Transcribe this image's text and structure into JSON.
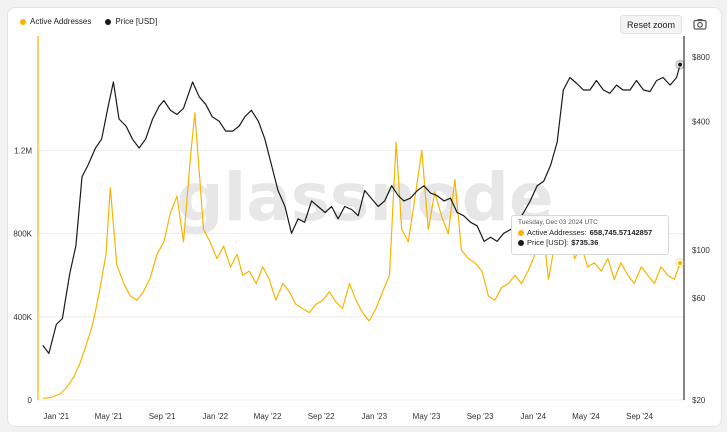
{
  "legend": {
    "active_label": "Active Addresses",
    "price_label": "Price [USD]"
  },
  "toolbar": {
    "reset_zoom_label": "Reset zoom",
    "camera_icon": "camera-icon"
  },
  "watermark": "glassnode",
  "colors": {
    "active": "#f7b500",
    "price": "#1a1a1a",
    "grid": "#ebebeb",
    "axis_text": "#333333"
  },
  "tooltip": {
    "date": "Tuesday, Dec 03 2024 UTC",
    "active_label": "Active Addresses:",
    "active_value": "658,745.57142857",
    "price_label": "Price [USD]:",
    "price_value": "$735.36"
  },
  "chart_data": {
    "type": "line",
    "x_ticks": [
      "Jan '21",
      "May '21",
      "Sep '21",
      "Jan '22",
      "May '22",
      "Sep '22",
      "Jan '23",
      "May '23",
      "Sep '23",
      "Jan '24",
      "May '24",
      "Sep '24"
    ],
    "left_axis": {
      "ticks": [
        "0",
        "400K",
        "800K",
        "1.2M"
      ],
      "ylim": [
        0,
        1750000
      ]
    },
    "right_axis": {
      "scale": "log",
      "ticks": [
        "$20",
        "$60",
        "$100",
        "$400",
        "$800"
      ],
      "ylim": [
        20,
        1000
      ]
    },
    "grid": true,
    "legend_position": "top-left",
    "series": [
      {
        "name": "Active Addresses",
        "axis": "left",
        "x": [
          "2020-12-01",
          "2020-12-20",
          "2021-01-10",
          "2021-01-25",
          "2021-02-10",
          "2021-02-25",
          "2021-03-10",
          "2021-03-25",
          "2021-04-10",
          "2021-04-25",
          "2021-05-05",
          "2021-05-20",
          "2021-06-05",
          "2021-06-20",
          "2021-07-05",
          "2021-07-20",
          "2021-08-05",
          "2021-08-20",
          "2021-09-05",
          "2021-09-20",
          "2021-10-05",
          "2021-10-20",
          "2021-11-05",
          "2021-11-15",
          "2021-11-25",
          "2021-12-05",
          "2021-12-20",
          "2022-01-05",
          "2022-01-20",
          "2022-02-05",
          "2022-02-20",
          "2022-03-05",
          "2022-03-20",
          "2022-04-05",
          "2022-04-20",
          "2022-05-05",
          "2022-05-20",
          "2022-06-05",
          "2022-06-20",
          "2022-07-05",
          "2022-07-20",
          "2022-08-05",
          "2022-08-20",
          "2022-09-05",
          "2022-09-20",
          "2022-10-05",
          "2022-10-20",
          "2022-11-05",
          "2022-11-20",
          "2022-12-05",
          "2022-12-20",
          "2023-01-05",
          "2023-01-20",
          "2023-02-05",
          "2023-02-20",
          "2023-03-05",
          "2023-03-20",
          "2023-04-05",
          "2023-04-20",
          "2023-05-05",
          "2023-05-20",
          "2023-06-05",
          "2023-06-20",
          "2023-07-05",
          "2023-07-20",
          "2023-08-05",
          "2023-08-20",
          "2023-09-05",
          "2023-09-20",
          "2023-10-05",
          "2023-10-20",
          "2023-11-05",
          "2023-11-20",
          "2023-12-05",
          "2023-12-20",
          "2024-01-05",
          "2024-01-20",
          "2024-02-05",
          "2024-02-20",
          "2024-03-05",
          "2024-03-20",
          "2024-04-05",
          "2024-04-20",
          "2024-05-05",
          "2024-05-20",
          "2024-06-05",
          "2024-06-20",
          "2024-07-05",
          "2024-07-20",
          "2024-08-05",
          "2024-08-20",
          "2024-09-05",
          "2024-09-20",
          "2024-10-05",
          "2024-10-20",
          "2024-11-05",
          "2024-11-20",
          "2024-12-03"
        ],
        "values": [
          8000,
          12000,
          30000,
          60000,
          110000,
          180000,
          260000,
          360000,
          520000,
          700000,
          1020000,
          650000,
          560000,
          500000,
          480000,
          520000,
          590000,
          700000,
          760000,
          900000,
          980000,
          760000,
          1170000,
          1380000,
          1100000,
          820000,
          760000,
          680000,
          740000,
          640000,
          700000,
          600000,
          620000,
          560000,
          640000,
          580000,
          480000,
          560000,
          520000,
          460000,
          440000,
          420000,
          460000,
          480000,
          520000,
          470000,
          440000,
          560000,
          480000,
          420000,
          380000,
          440000,
          520000,
          600000,
          1240000,
          820000,
          760000,
          980000,
          1200000,
          820000,
          1000000,
          880000,
          800000,
          1060000,
          720000,
          680000,
          660000,
          620000,
          500000,
          480000,
          540000,
          560000,
          600000,
          560000,
          620000,
          700000,
          880000,
          580000,
          760000,
          760000,
          840000,
          680000,
          740000,
          640000,
          660000,
          620000,
          680000,
          580000,
          660000,
          600000,
          560000,
          640000,
          600000,
          560000,
          640000,
          600000,
          580000,
          658746
        ]
      },
      {
        "name": "Price [USD]",
        "axis": "right",
        "x": [
          "2020-12-01",
          "2020-12-15",
          "2021-01-01",
          "2021-01-15",
          "2021-02-01",
          "2021-02-15",
          "2021-03-01",
          "2021-03-15",
          "2021-04-01",
          "2021-04-15",
          "2021-05-01",
          "2021-05-12",
          "2021-05-25",
          "2021-06-10",
          "2021-06-25",
          "2021-07-10",
          "2021-07-25",
          "2021-08-10",
          "2021-08-25",
          "2021-09-05",
          "2021-09-20",
          "2021-10-05",
          "2021-10-20",
          "2021-11-10",
          "2021-11-25",
          "2021-12-10",
          "2021-12-25",
          "2022-01-10",
          "2022-01-25",
          "2022-02-10",
          "2022-02-25",
          "2022-03-10",
          "2022-03-25",
          "2022-04-10",
          "2022-04-25",
          "2022-05-10",
          "2022-05-25",
          "2022-06-10",
          "2022-06-25",
          "2022-07-10",
          "2022-07-25",
          "2022-08-10",
          "2022-08-25",
          "2022-09-10",
          "2022-09-25",
          "2022-10-10",
          "2022-10-25",
          "2022-11-10",
          "2022-11-25",
          "2022-12-10",
          "2022-12-25",
          "2023-01-10",
          "2023-01-25",
          "2023-02-10",
          "2023-02-25",
          "2023-03-10",
          "2023-03-25",
          "2023-04-10",
          "2023-04-25",
          "2023-05-10",
          "2023-05-25",
          "2023-06-10",
          "2023-06-25",
          "2023-07-10",
          "2023-07-25",
          "2023-08-10",
          "2023-08-25",
          "2023-09-10",
          "2023-09-25",
          "2023-10-10",
          "2023-10-25",
          "2023-11-10",
          "2023-11-25",
          "2023-12-10",
          "2023-12-25",
          "2024-01-10",
          "2024-01-25",
          "2024-02-10",
          "2024-02-25",
          "2024-03-10",
          "2024-03-25",
          "2024-04-10",
          "2024-04-25",
          "2024-05-10",
          "2024-05-25",
          "2024-06-10",
          "2024-06-25",
          "2024-07-10",
          "2024-07-25",
          "2024-08-10",
          "2024-08-25",
          "2024-09-10",
          "2024-09-25",
          "2024-10-10",
          "2024-10-25",
          "2024-11-10",
          "2024-11-25",
          "2024-12-03"
        ],
        "values": [
          36,
          33,
          45,
          48,
          78,
          105,
          220,
          250,
          300,
          330,
          480,
          610,
          410,
          380,
          330,
          300,
          330,
          410,
          470,
          500,
          450,
          430,
          460,
          610,
          520,
          480,
          420,
          400,
          360,
          360,
          380,
          420,
          450,
          400,
          330,
          250,
          190,
          160,
          120,
          140,
          135,
          170,
          160,
          150,
          160,
          140,
          160,
          155,
          145,
          190,
          175,
          160,
          170,
          200,
          180,
          170,
          175,
          190,
          200,
          185,
          180,
          170,
          175,
          150,
          145,
          135,
          130,
          110,
          115,
          110,
          120,
          125,
          135,
          150,
          170,
          200,
          210,
          250,
          320,
          560,
          640,
          600,
          560,
          560,
          620,
          560,
          540,
          590,
          560,
          560,
          620,
          560,
          550,
          620,
          640,
          590,
          640,
          735.36
        ]
      }
    ]
  }
}
